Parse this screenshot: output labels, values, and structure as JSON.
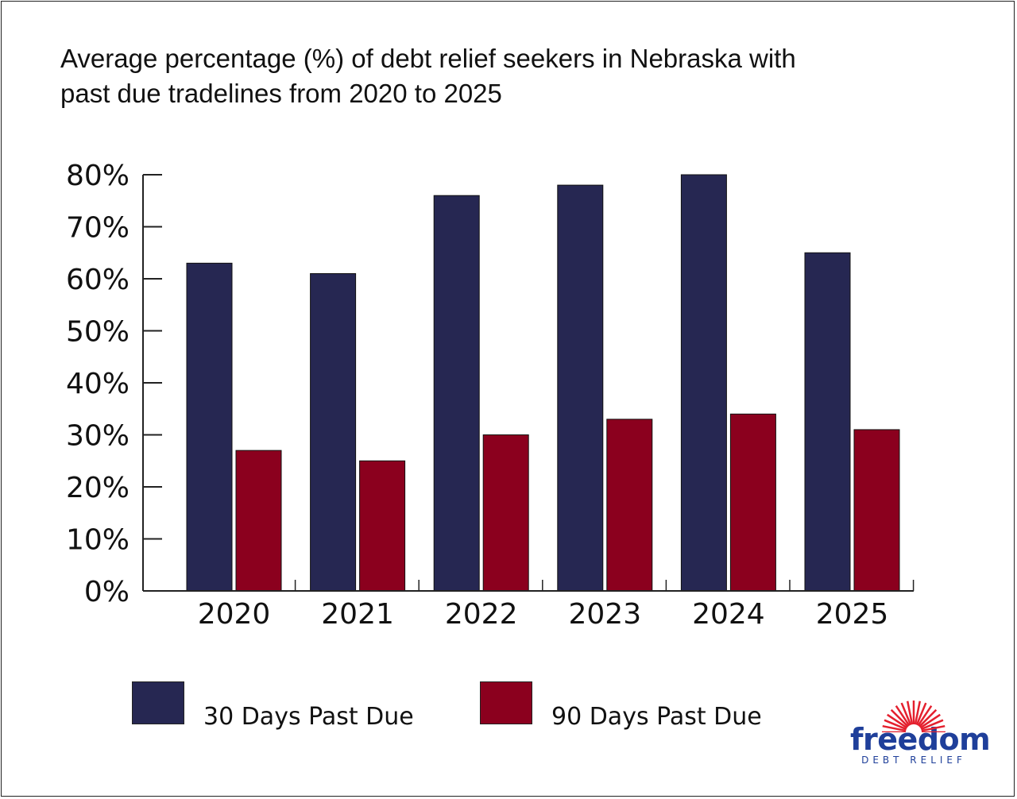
{
  "chart_data": {
    "type": "bar",
    "title_lines": [
      "Average percentage (%) of debt relief seekers in Nebraska with",
      "past due tradelines from 2020 to 2025"
    ],
    "categories": [
      "2020",
      "2021",
      "2022",
      "2023",
      "2024",
      "2025"
    ],
    "series": [
      {
        "name": "30 Days Past Due",
        "color": "#262752",
        "values": [
          63,
          61,
          76,
          78,
          80,
          65
        ]
      },
      {
        "name": "90 Days Past Due",
        "color": "#8b001e",
        "values": [
          27,
          25,
          30,
          33,
          34,
          31
        ]
      }
    ],
    "y_ticks": [
      "0%",
      "10%",
      "20%",
      "30%",
      "40%",
      "50%",
      "60%",
      "70%",
      "80%"
    ],
    "ylim": [
      0,
      80
    ],
    "xlabel": "",
    "ylabel": "",
    "grid": false,
    "legend_position": "bottom-left"
  },
  "logo": {
    "word": "freedom",
    "sub": "DEBT RELIEF",
    "word_color": "#1f3f9a",
    "rays_color": "#e4202e"
  }
}
